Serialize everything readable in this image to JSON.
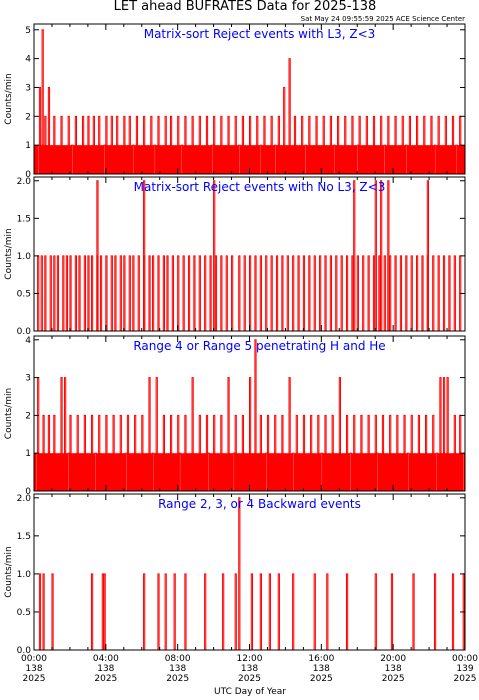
{
  "figure": {
    "title": "LET ahead BUFRATES Data for 2025-138",
    "timestamp": "Sat May 24 09:55:59 2025 ACE Science Center",
    "xlabel": "UTC Day of Year",
    "line_color": "#ff0000",
    "panel_title_color": "#0000ff"
  },
  "x_ticks": [
    {
      "time": "00:00",
      "doy": "138",
      "year": "2025",
      "hour": 0
    },
    {
      "time": "04:00",
      "doy": "138",
      "year": "2025",
      "hour": 4
    },
    {
      "time": "08:00",
      "doy": "138",
      "year": "2025",
      "hour": 8
    },
    {
      "time": "12:00",
      "doy": "138",
      "year": "2025",
      "hour": 12
    },
    {
      "time": "16:00",
      "doy": "138",
      "year": "2025",
      "hour": 16
    },
    {
      "time": "20:00",
      "doy": "138",
      "year": "2025",
      "hour": 20
    },
    {
      "time": "00:00",
      "doy": "139",
      "year": "2025",
      "hour": 24
    }
  ],
  "chart_data": [
    {
      "type": "line",
      "title": "Matrix-sort Reject events with L3, Z<3",
      "ylabel": "Counts/min",
      "xlim": [
        0,
        24
      ],
      "ylim": [
        0,
        5.2
      ],
      "yticks": [
        "0",
        "1",
        "2",
        "3",
        "4",
        "5"
      ],
      "ytick_values": [
        0,
        1,
        2,
        3,
        4,
        5
      ],
      "series": [
        {
          "baseline": 1,
          "spikes": [
            [
              0.3,
              3
            ],
            [
              0.45,
              5
            ],
            [
              0.6,
              2
            ],
            [
              0.8,
              3
            ],
            [
              1.1,
              2
            ],
            [
              1.5,
              2
            ],
            [
              1.9,
              2
            ],
            [
              2.3,
              2
            ],
            [
              2.7,
              2
            ],
            [
              3.0,
              2
            ],
            [
              3.3,
              2
            ],
            [
              3.6,
              2
            ],
            [
              4.0,
              2
            ],
            [
              4.3,
              2
            ],
            [
              4.6,
              2
            ],
            [
              5.0,
              2
            ],
            [
              5.3,
              2
            ],
            [
              5.7,
              2
            ],
            [
              6.1,
              2
            ],
            [
              6.5,
              2
            ],
            [
              6.9,
              2
            ],
            [
              7.3,
              2
            ],
            [
              7.6,
              2
            ],
            [
              8.0,
              2
            ],
            [
              8.4,
              2
            ],
            [
              8.8,
              2
            ],
            [
              9.2,
              2
            ],
            [
              9.6,
              2
            ],
            [
              10.0,
              2
            ],
            [
              10.4,
              2
            ],
            [
              10.8,
              2
            ],
            [
              11.2,
              2
            ],
            [
              11.6,
              2
            ],
            [
              12.0,
              2
            ],
            [
              12.4,
              2
            ],
            [
              12.8,
              2
            ],
            [
              13.2,
              2
            ],
            [
              13.6,
              2
            ],
            [
              13.9,
              3
            ],
            [
              14.2,
              4
            ],
            [
              14.5,
              2
            ],
            [
              14.9,
              2
            ],
            [
              15.3,
              2
            ],
            [
              15.7,
              2
            ],
            [
              16.1,
              2
            ],
            [
              16.5,
              2
            ],
            [
              16.9,
              2
            ],
            [
              17.3,
              2
            ],
            [
              17.7,
              2
            ],
            [
              18.1,
              2
            ],
            [
              18.5,
              2
            ],
            [
              18.9,
              2
            ],
            [
              19.3,
              2
            ],
            [
              19.7,
              2
            ],
            [
              20.1,
              2
            ],
            [
              20.5,
              2
            ],
            [
              20.9,
              2
            ],
            [
              21.3,
              2
            ],
            [
              21.7,
              2
            ],
            [
              22.1,
              2
            ],
            [
              22.5,
              2
            ],
            [
              22.9,
              2
            ],
            [
              23.3,
              2
            ],
            [
              23.7,
              2
            ]
          ],
          "zeros": [
            0.2,
            2.1,
            3.9,
            5.5,
            6.7,
            8.2,
            9.9,
            11.4,
            12.6,
            13.4,
            15.1,
            16.7,
            18.0,
            19.5,
            20.7,
            22.3,
            23.5
          ]
        }
      ]
    },
    {
      "type": "line",
      "title": "Matrix-sort Reject events with No L3, Z<3",
      "ylabel": "Counts/min",
      "xlim": [
        0,
        24
      ],
      "ylim": [
        0,
        2.05
      ],
      "yticks": [
        "0.0",
        "0.5",
        "1.0",
        "1.5",
        "2.0"
      ],
      "ytick_values": [
        0,
        0.5,
        1,
        1.5,
        2
      ],
      "series": [
        {
          "baseline": 0,
          "ones": [
            0.2,
            0.4,
            0.6,
            0.9,
            1.1,
            1.3,
            1.6,
            1.8,
            2.0,
            2.3,
            2.5,
            2.8,
            3.0,
            3.2,
            3.5,
            3.7,
            4.0,
            4.3,
            4.5,
            4.8,
            5.0,
            5.3,
            5.5,
            5.8,
            6.1,
            6.4,
            6.6,
            6.9,
            7.2,
            7.4,
            7.7,
            8.0,
            8.3,
            8.6,
            8.9,
            9.2,
            9.5,
            9.8,
            10.1,
            10.4,
            10.7,
            11.0,
            11.4,
            11.7,
            12.0,
            12.3,
            12.6,
            12.9,
            13.2,
            13.5,
            13.8,
            14.1,
            14.4,
            14.7,
            15.0,
            15.3,
            15.6,
            15.9,
            16.2,
            16.5,
            16.8,
            17.1,
            17.4,
            17.7,
            18.0,
            18.3,
            18.6,
            18.9,
            19.2,
            19.5,
            19.8,
            20.1,
            20.4,
            20.7,
            21.0,
            21.3,
            21.6,
            21.9,
            22.2,
            22.5,
            22.8,
            23.1,
            23.4,
            23.7
          ],
          "twos": [
            3.5,
            6.1,
            10.0,
            17.8,
            19.0,
            19.3,
            19.7,
            21.9
          ]
        }
      ]
    },
    {
      "type": "line",
      "title": "Range 4 or Range 5 penetrating H and He",
      "ylabel": "Counts/min",
      "xlim": [
        0,
        24
      ],
      "ylim": [
        0,
        4.1
      ],
      "yticks": [
        "0",
        "1",
        "2",
        "3",
        "4"
      ],
      "ytick_values": [
        0,
        1,
        2,
        3,
        4
      ],
      "series": [
        {
          "baseline": 1,
          "spikes": [
            [
              0.2,
              3
            ],
            [
              0.5,
              2
            ],
            [
              0.8,
              2
            ],
            [
              1.1,
              2
            ],
            [
              1.5,
              3
            ],
            [
              1.7,
              3
            ],
            [
              2.0,
              2
            ],
            [
              2.4,
              2
            ],
            [
              2.8,
              2
            ],
            [
              3.2,
              2
            ],
            [
              3.6,
              2
            ],
            [
              4.0,
              2
            ],
            [
              4.4,
              2
            ],
            [
              4.8,
              2
            ],
            [
              5.2,
              2
            ],
            [
              5.6,
              2
            ],
            [
              6.0,
              2
            ],
            [
              6.4,
              3
            ],
            [
              6.8,
              3
            ],
            [
              7.2,
              2
            ],
            [
              7.6,
              2
            ],
            [
              8.0,
              2
            ],
            [
              8.4,
              2
            ],
            [
              8.8,
              3
            ],
            [
              9.2,
              2
            ],
            [
              9.6,
              2
            ],
            [
              10.0,
              2
            ],
            [
              10.4,
              2
            ],
            [
              10.8,
              3
            ],
            [
              11.2,
              2
            ],
            [
              11.6,
              2
            ],
            [
              12.0,
              3
            ],
            [
              12.3,
              4
            ],
            [
              12.6,
              2
            ],
            [
              13.0,
              2
            ],
            [
              13.4,
              2
            ],
            [
              13.8,
              2
            ],
            [
              14.2,
              3
            ],
            [
              14.6,
              2
            ],
            [
              15.0,
              2
            ],
            [
              15.4,
              2
            ],
            [
              15.8,
              2
            ],
            [
              16.2,
              2
            ],
            [
              16.6,
              2
            ],
            [
              17.0,
              3
            ],
            [
              17.4,
              2
            ],
            [
              17.8,
              2
            ],
            [
              18.2,
              2
            ],
            [
              18.6,
              2
            ],
            [
              19.0,
              2
            ],
            [
              19.4,
              2
            ],
            [
              19.8,
              2
            ],
            [
              20.2,
              2
            ],
            [
              20.6,
              2
            ],
            [
              21.0,
              2
            ],
            [
              21.4,
              2
            ],
            [
              21.8,
              2
            ],
            [
              22.2,
              2
            ],
            [
              22.6,
              3
            ],
            [
              22.8,
              3
            ],
            [
              23.0,
              3
            ],
            [
              23.4,
              2
            ],
            [
              23.7,
              2
            ]
          ],
          "zeros": [
            0.1,
            1.9,
            3.4,
            5.1,
            6.6,
            8.1,
            9.7,
            11.1,
            12.9,
            14.4,
            16.0,
            17.6,
            19.1,
            20.8,
            22.4,
            23.9
          ]
        }
      ]
    },
    {
      "type": "line",
      "title": "Range 2, 3, or 4 Backward events",
      "ylabel": "Counts/min",
      "xlim": [
        0,
        24
      ],
      "ylim": [
        0,
        2.05
      ],
      "yticks": [
        "0.0",
        "0.5",
        "1.0",
        "1.5",
        "2.0"
      ],
      "ytick_values": [
        0,
        0.5,
        1,
        1.5,
        2
      ],
      "series": [
        {
          "baseline": 0,
          "ones": [
            0.3,
            0.5,
            1.0,
            3.2,
            3.8,
            3.9,
            6.1,
            6.9,
            7.3,
            7.8,
            8.4,
            9.5,
            10.5,
            11.2,
            12.1,
            12.6,
            13.1,
            13.6,
            14.4,
            15.6,
            16.3,
            17.4,
            19.0,
            19.9,
            21.1,
            22.3,
            23.3,
            23.9
          ],
          "twos": [
            11.4
          ]
        }
      ]
    }
  ]
}
